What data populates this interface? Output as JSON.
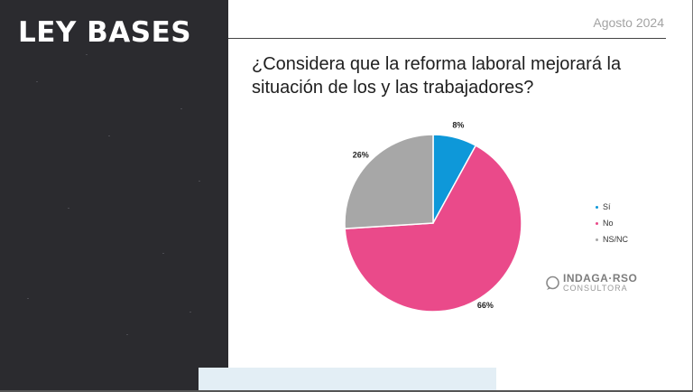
{
  "brand": "LEY BASES",
  "date": "Agosto 2024",
  "question": "¿Considera que la reforma laboral mejorará la situación de los y las trabajadores?",
  "logo": {
    "name": "INDAGA·RSO",
    "subtitle": "CONSULTORA"
  },
  "chart_data": {
    "type": "pie",
    "title": "¿Considera que la reforma laboral mejorará la situación de los y las trabajadores?",
    "slices": [
      {
        "label": "Sí",
        "value": 8,
        "display": "8%",
        "color": "#0e98d9"
      },
      {
        "label": "No",
        "value": 66,
        "display": "66%",
        "color": "#ea4a8a"
      },
      {
        "label": "NS/NC",
        "value": 26,
        "display": "26%",
        "color": "#a7a7a7"
      }
    ],
    "legend_position": "right"
  }
}
